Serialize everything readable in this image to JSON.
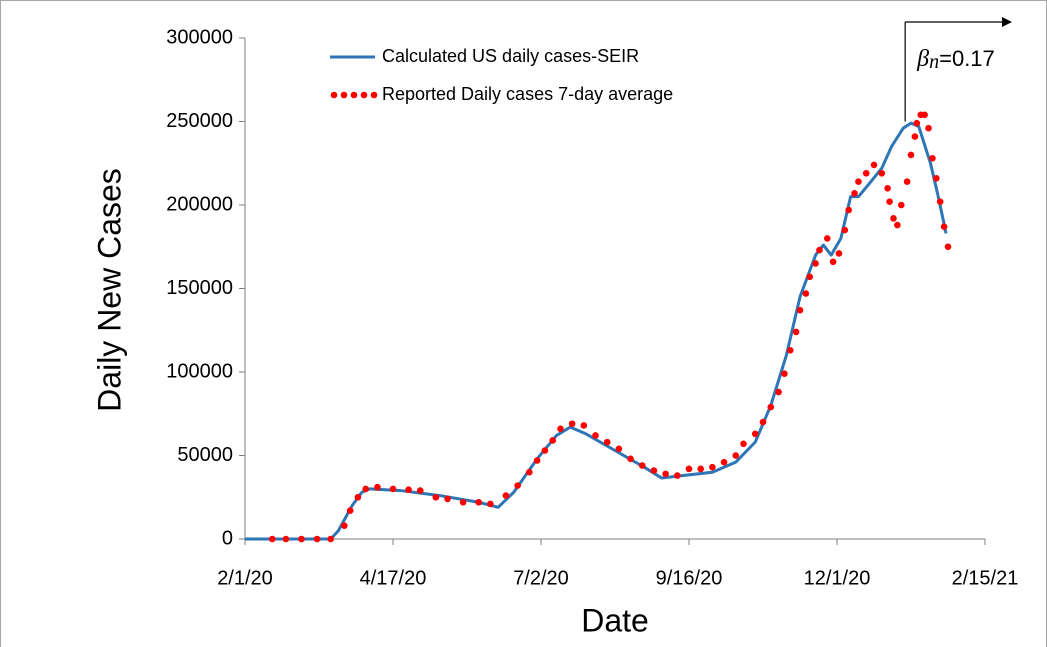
{
  "chart_data": {
    "type": "line",
    "x_label": "Date",
    "y_label": "Daily New Cases",
    "xlim": [
      "2020-02-01",
      "2021-02-15"
    ],
    "xticks": [
      {
        "value": "2020-02-01",
        "label": "2/1/20"
      },
      {
        "value": "2020-04-17",
        "label": "4/17/20"
      },
      {
        "value": "2020-07-02",
        "label": "7/2/20"
      },
      {
        "value": "2020-09-16",
        "label": "9/16/20"
      },
      {
        "value": "2020-12-01",
        "label": "12/1/20"
      },
      {
        "value": "2021-02-15",
        "label": "2/15/21"
      }
    ],
    "ylim": [
      0,
      300000
    ],
    "yticks": [
      0,
      50000,
      100000,
      150000,
      200000,
      250000,
      300000
    ],
    "grid": false,
    "series": [
      {
        "name": "Calculated US daily cases-SEIR",
        "style": "line",
        "color": "#2e75b6",
        "x": [
          "2020-02-01",
          "2020-03-16",
          "2020-03-20",
          "2020-03-27",
          "2020-04-01",
          "2020-04-05",
          "2020-04-21",
          "2020-05-11",
          "2020-05-31",
          "2020-06-10",
          "2020-06-18",
          "2020-06-30",
          "2020-07-10",
          "2020-07-17",
          "2020-07-25",
          "2020-08-09",
          "2020-08-24",
          "2020-09-02",
          "2020-09-13",
          "2020-09-28",
          "2020-10-10",
          "2020-10-20",
          "2020-10-28",
          "2020-11-05",
          "2020-11-12",
          "2020-11-20",
          "2020-11-24",
          "2020-11-28",
          "2020-12-03",
          "2020-12-08",
          "2020-12-12",
          "2020-12-17",
          "2020-12-24",
          "2020-12-29",
          "2021-01-04",
          "2021-01-08",
          "2021-01-12",
          "2021-01-18",
          "2021-01-22",
          "2021-01-26"
        ],
        "values": [
          0,
          0,
          5000,
          20000,
          28000,
          30000,
          29000,
          26000,
          22000,
          19000,
          28000,
          48000,
          62000,
          67000,
          63000,
          53000,
          43000,
          36500,
          38000,
          40000,
          46000,
          58000,
          80000,
          110000,
          145000,
          170000,
          176000,
          170000,
          180000,
          205000,
          205000,
          212000,
          222000,
          235000,
          246000,
          249000,
          247000,
          225000,
          205000,
          183000
        ]
      },
      {
        "name": "Reported Daily cases 7-day average",
        "style": "dots",
        "color": "#ff0000",
        "x": [
          "2020-02-15",
          "2020-02-22",
          "2020-03-01",
          "2020-03-09",
          "2020-03-16",
          "2020-03-23",
          "2020-03-26",
          "2020-03-30",
          "2020-04-03",
          "2020-04-09",
          "2020-04-17",
          "2020-04-25",
          "2020-05-01",
          "2020-05-09",
          "2020-05-15",
          "2020-05-23",
          "2020-05-31",
          "2020-06-06",
          "2020-06-14",
          "2020-06-20",
          "2020-06-26",
          "2020-06-30",
          "2020-07-04",
          "2020-07-08",
          "2020-07-12",
          "2020-07-18",
          "2020-07-24",
          "2020-07-30",
          "2020-08-05",
          "2020-08-11",
          "2020-08-17",
          "2020-08-23",
          "2020-08-29",
          "2020-09-04",
          "2020-09-10",
          "2020-09-16",
          "2020-09-22",
          "2020-09-28",
          "2020-10-04",
          "2020-10-10",
          "2020-10-14",
          "2020-10-20",
          "2020-10-24",
          "2020-10-28",
          "2020-11-01",
          "2020-11-04",
          "2020-11-07",
          "2020-11-10",
          "2020-11-12",
          "2020-11-15",
          "2020-11-17",
          "2020-11-20",
          "2020-11-22",
          "2020-11-26",
          "2020-11-29",
          "2020-12-02",
          "2020-12-05",
          "2020-12-07",
          "2020-12-10",
          "2020-12-12",
          "2020-12-16",
          "2020-12-20",
          "2020-12-24",
          "2020-12-27",
          "2020-12-28",
          "2020-12-30",
          "2021-01-01",
          "2021-01-03",
          "2021-01-06",
          "2021-01-08",
          "2021-01-10",
          "2021-01-11",
          "2021-01-13",
          "2021-01-15",
          "2021-01-17",
          "2021-01-19",
          "2021-01-21",
          "2021-01-23",
          "2021-01-25",
          "2021-01-27"
        ],
        "values": [
          0,
          0,
          0,
          0,
          0,
          8000,
          17000,
          25000,
          30000,
          31000,
          30000,
          29500,
          29000,
          25000,
          24000,
          22000,
          22000,
          21000,
          26000,
          32000,
          40000,
          47000,
          53000,
          59000,
          66000,
          69000,
          68000,
          62000,
          58000,
          54000,
          48000,
          44000,
          41000,
          39000,
          38000,
          42000,
          42000,
          43000,
          46000,
          50000,
          57000,
          63000,
          70000,
          79000,
          88000,
          99000,
          113000,
          124000,
          137000,
          147000,
          157000,
          165000,
          173000,
          180000,
          166000,
          171000,
          185000,
          197000,
          207000,
          214000,
          219000,
          224000,
          219000,
          210000,
          202000,
          192000,
          188000,
          200000,
          214000,
          230000,
          241000,
          249000,
          254000,
          254000,
          246000,
          228000,
          216000,
          202000,
          187000,
          175000
        ]
      }
    ],
    "annotation": {
      "x": "2021-01-05",
      "parts": [
        "β",
        "n",
        "=0.17"
      ]
    }
  }
}
